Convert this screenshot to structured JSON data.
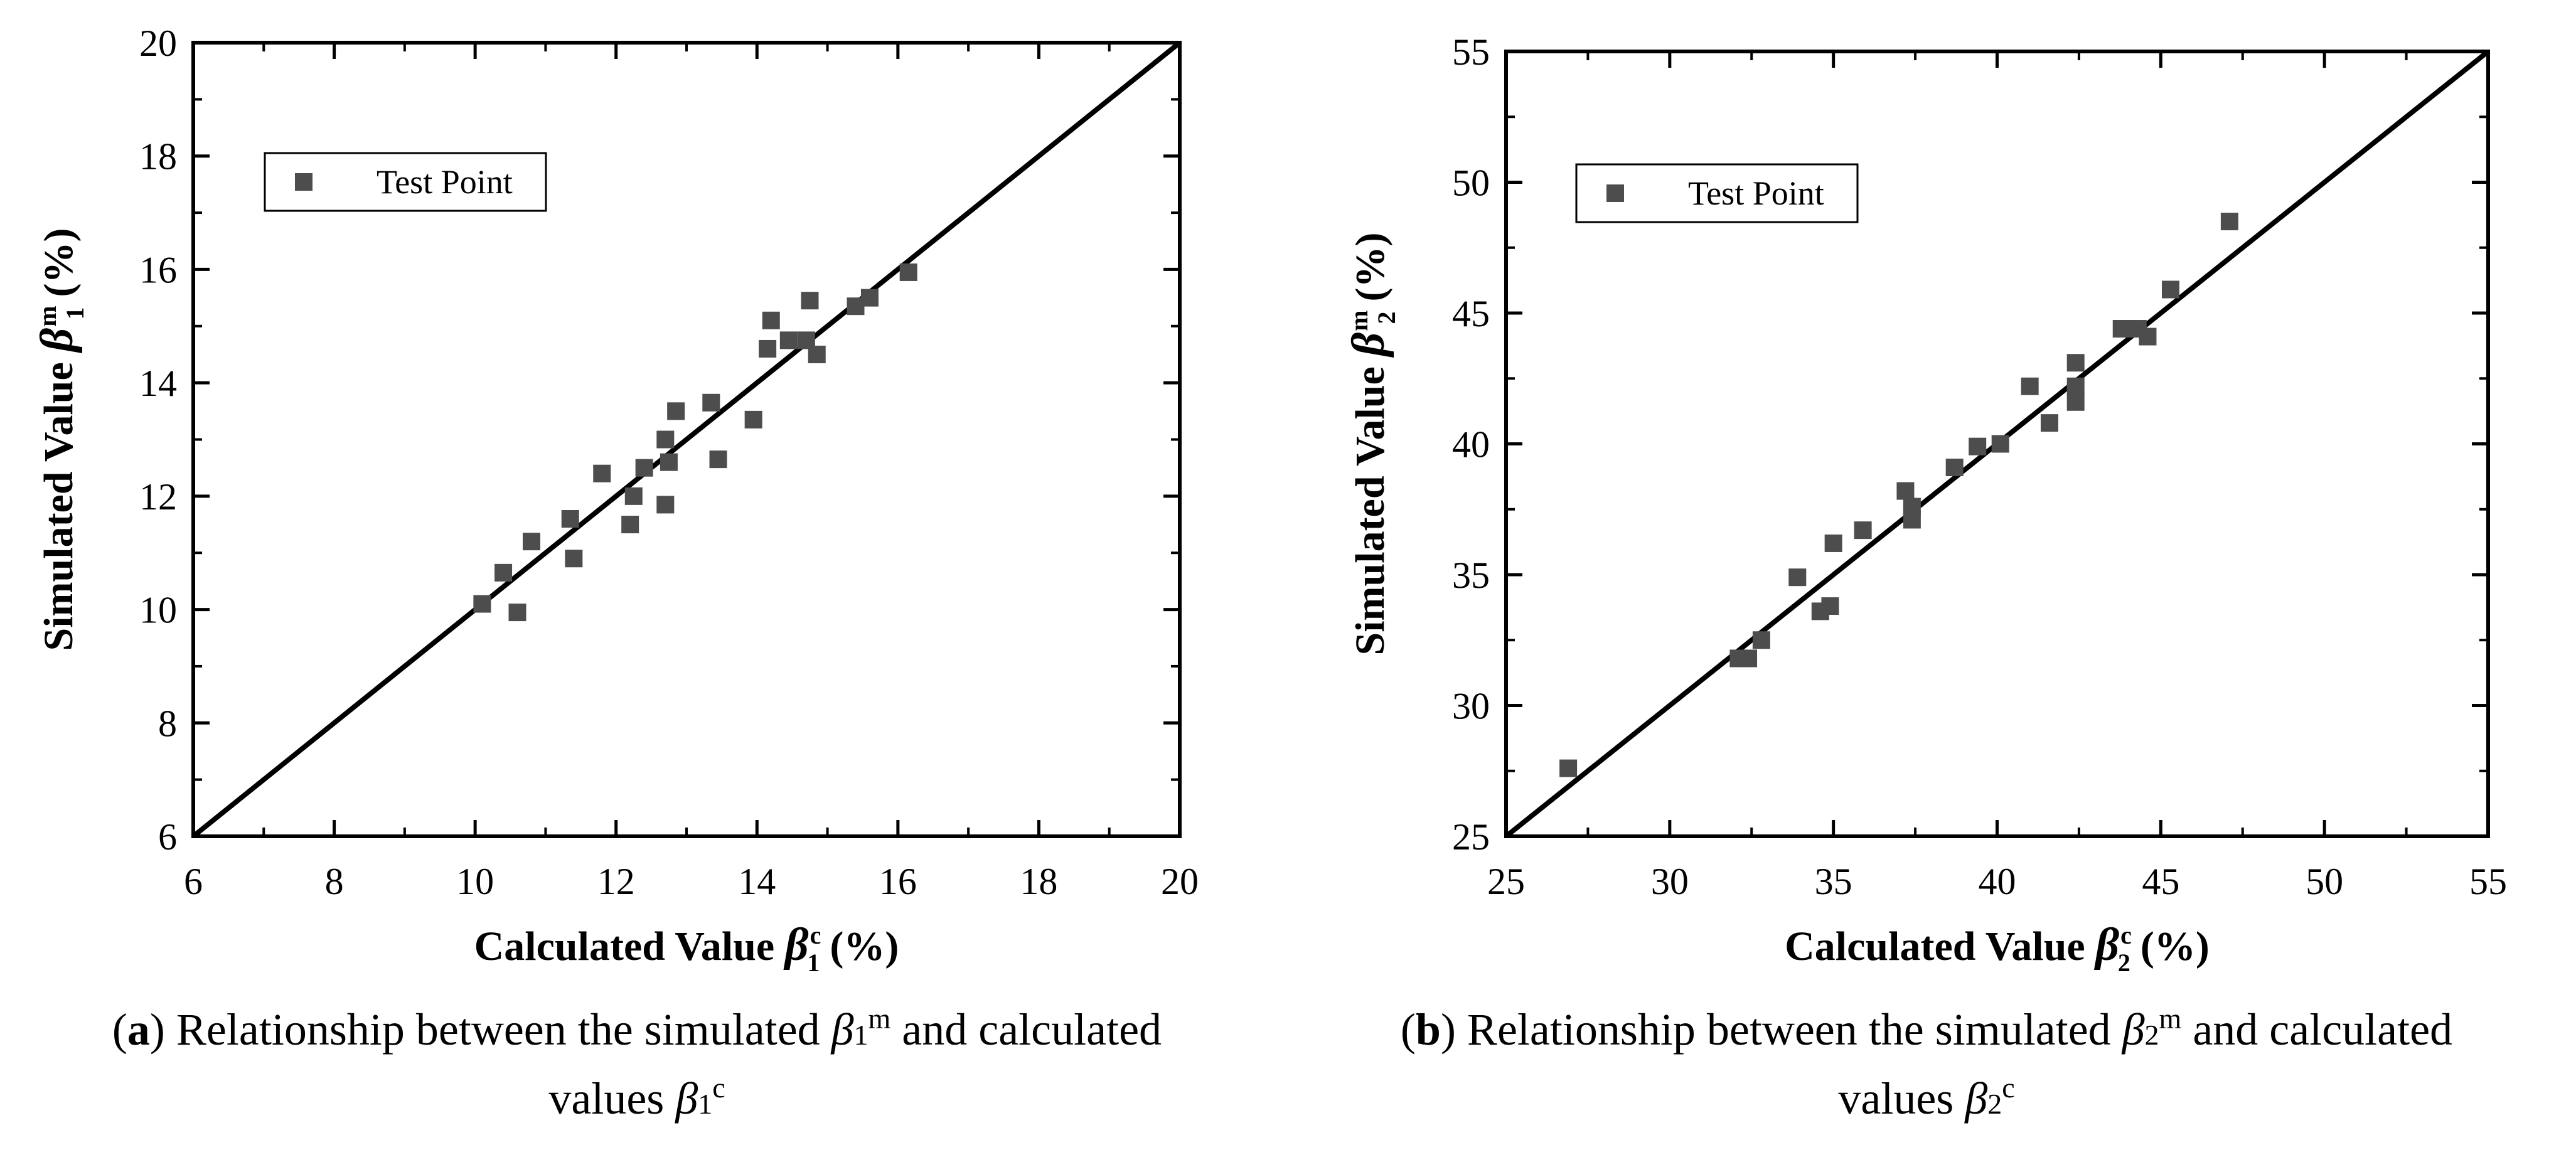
{
  "chart_data": [
    {
      "type": "scatter",
      "panel": "a",
      "xlim": [
        6,
        20
      ],
      "ylim": [
        6,
        20
      ],
      "xticks": [
        6,
        8,
        10,
        12,
        14,
        16,
        18,
        20
      ],
      "yticks": [
        6,
        8,
        10,
        12,
        14,
        16,
        18,
        20
      ],
      "x_axis_label": {
        "prefix": "Calculated Value ",
        "symbol": "β",
        "sub": "1",
        "sup": "c",
        "unit": "(%)"
      },
      "y_axis_label": {
        "prefix": "Simulated Value ",
        "symbol": "β",
        "sub": "1",
        "sup": "m",
        "unit": "(%)"
      },
      "legend": {
        "label": "Test Point",
        "placement": "top-left"
      },
      "reference_line": {
        "x": [
          6,
          20
        ],
        "y": [
          6,
          20
        ]
      },
      "color": "#4d4d4d",
      "points": [
        [
          10.1,
          10.1
        ],
        [
          10.4,
          10.65
        ],
        [
          10.6,
          9.95
        ],
        [
          10.8,
          11.2
        ],
        [
          11.35,
          11.6
        ],
        [
          11.4,
          10.9
        ],
        [
          11.8,
          12.4
        ],
        [
          12.2,
          11.5
        ],
        [
          12.25,
          12.0
        ],
        [
          12.4,
          12.5
        ],
        [
          12.7,
          11.85
        ],
        [
          12.7,
          13.0
        ],
        [
          12.75,
          12.6
        ],
        [
          12.85,
          13.5
        ],
        [
          13.35,
          13.65
        ],
        [
          13.45,
          12.65
        ],
        [
          13.95,
          13.35
        ],
        [
          14.15,
          14.6
        ],
        [
          14.2,
          15.1
        ],
        [
          14.45,
          14.75
        ],
        [
          14.7,
          14.75
        ],
        [
          14.75,
          15.45
        ],
        [
          14.85,
          14.5
        ],
        [
          15.4,
          15.35
        ],
        [
          15.6,
          15.5
        ],
        [
          16.15,
          15.95
        ]
      ],
      "caption": {
        "label": "a",
        "text1": " Relationship between the simulated ",
        "sym1": "β",
        "sub1": "1",
        "sup1": "m",
        "text2": " and calculated",
        "line2": "values ",
        "sym2": "β",
        "sub2": "1",
        "sup2": "c"
      }
    },
    {
      "type": "scatter",
      "panel": "b",
      "xlim": [
        25,
        55
      ],
      "ylim": [
        25,
        55
      ],
      "xticks": [
        25,
        30,
        35,
        40,
        45,
        50,
        55
      ],
      "yticks": [
        25,
        30,
        35,
        40,
        45,
        50,
        55
      ],
      "x_axis_label": {
        "prefix": "Calculated Value ",
        "symbol": "β",
        "sub": "2",
        "sup": "c",
        "unit": "(%)"
      },
      "y_axis_label": {
        "prefix": "Simulated Value ",
        "symbol": "β",
        "sub": "2",
        "sup": "m",
        "unit": "(%)"
      },
      "legend": {
        "label": "Test Point",
        "placement": "top-left"
      },
      "reference_line": {
        "x": [
          25,
          55
        ],
        "y": [
          25,
          55
        ]
      },
      "color": "#4d4d4d",
      "points": [
        [
          26.9,
          27.6
        ],
        [
          32.1,
          31.8
        ],
        [
          32.4,
          31.8
        ],
        [
          32.8,
          32.5
        ],
        [
          33.9,
          34.9
        ],
        [
          34.6,
          33.6
        ],
        [
          34.9,
          33.8
        ],
        [
          35.0,
          36.2
        ],
        [
          35.9,
          36.7
        ],
        [
          37.2,
          38.2
        ],
        [
          37.4,
          37.1
        ],
        [
          37.4,
          37.6
        ],
        [
          38.7,
          39.1
        ],
        [
          39.4,
          39.9
        ],
        [
          40.1,
          40.0
        ],
        [
          41.0,
          42.2
        ],
        [
          41.6,
          40.8
        ],
        [
          42.4,
          43.1
        ],
        [
          42.4,
          42.2
        ],
        [
          42.4,
          41.6
        ],
        [
          43.8,
          44.4
        ],
        [
          44.3,
          44.4
        ],
        [
          44.6,
          44.1
        ],
        [
          45.3,
          45.9
        ],
        [
          47.1,
          48.5
        ]
      ],
      "caption": {
        "label": "b",
        "text1": " Relationship between the simulated ",
        "sym1": "β",
        "sub1": "2",
        "sup1": "m",
        "text2": " and calculated",
        "line2": "values ",
        "sym2": "β",
        "sub2": "2",
        "sup2": "c"
      }
    }
  ]
}
